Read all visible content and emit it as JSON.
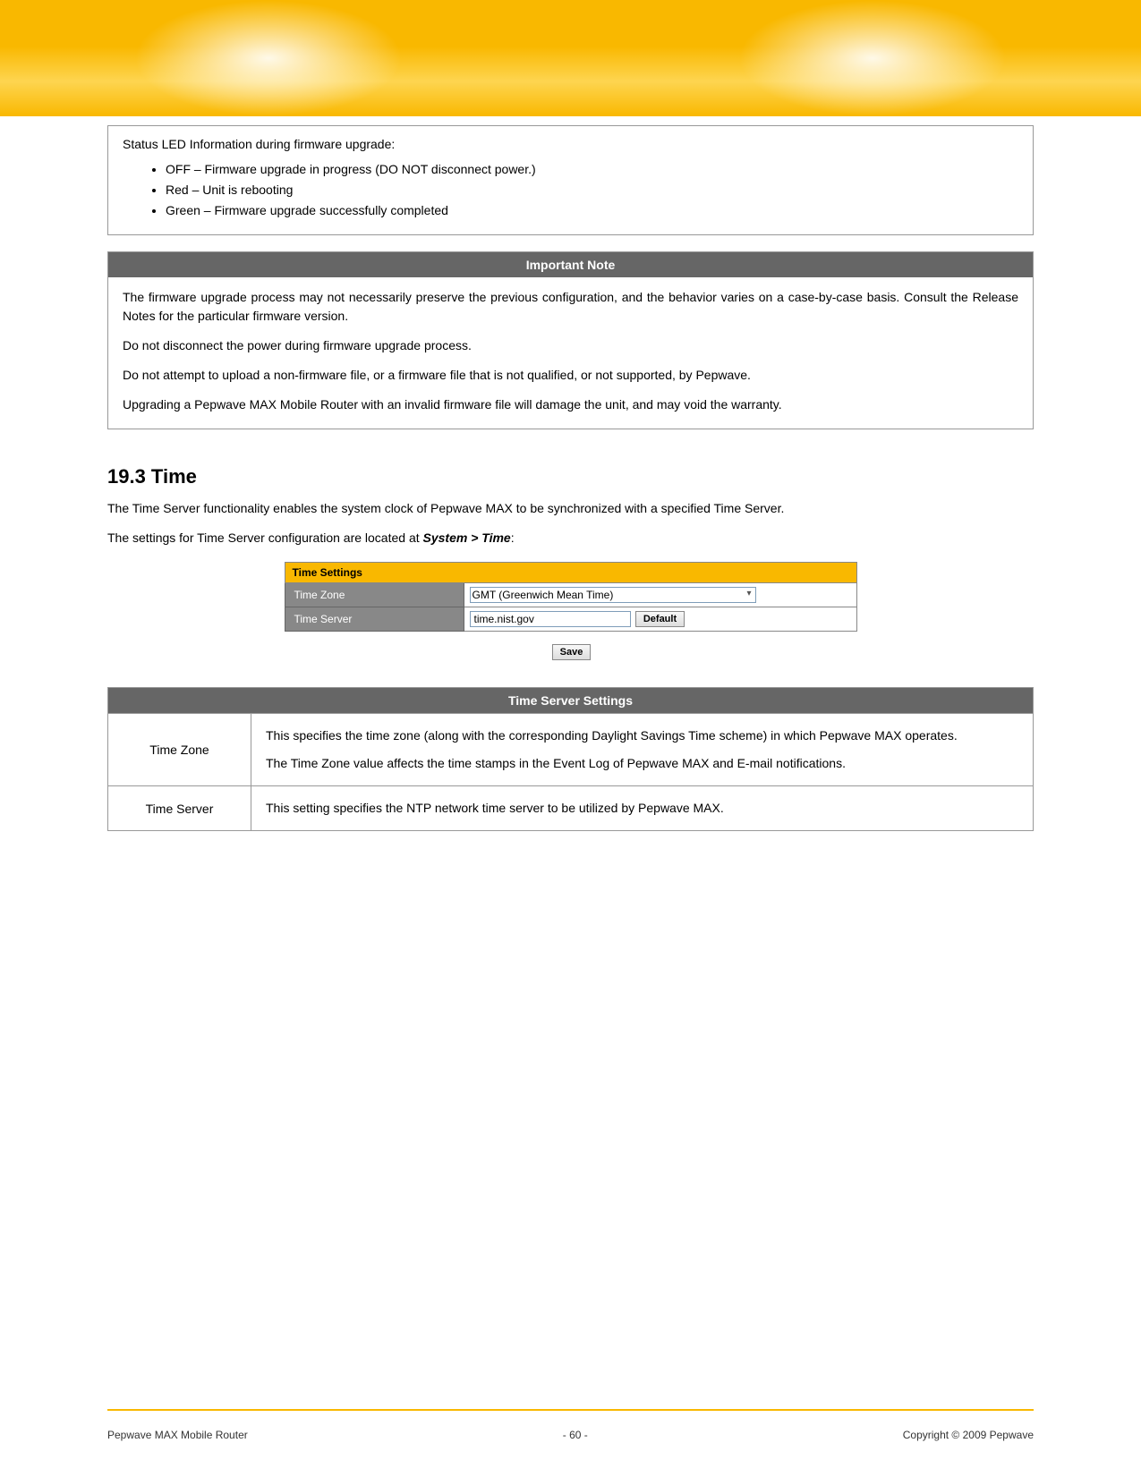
{
  "colors": {
    "banner": "#f9b800",
    "note_header_bg": "#666666",
    "note_header_fg": "#ffffff",
    "border": "#999999",
    "screenshot_header_bg": "#f9b800",
    "screenshot_label_bg": "#888888",
    "screenshot_label_fg": "#ffffff",
    "input_border": "#7f9db9"
  },
  "led": {
    "title": "Status LED Information during firmware upgrade:",
    "items": [
      "OFF – Firmware upgrade in progress (DO NOT disconnect power.)",
      "Red – Unit is rebooting",
      "Green – Firmware upgrade successfully completed"
    ]
  },
  "important_note": {
    "header": "Important Note",
    "paragraphs": [
      "The firmware upgrade process may not necessarily preserve the previous configuration, and the behavior varies on a case-by-case basis.  Consult the Release Notes for the particular firmware version.",
      "Do not disconnect the power during firmware upgrade process.",
      "Do not attempt to upload a non-firmware file, or a firmware file that is not qualified, or not supported, by Pepwave.",
      "Upgrading a Pepwave MAX Mobile Router with an invalid firmware file will damage the unit, and may void the warranty."
    ]
  },
  "section": {
    "heading": "19.3  Time",
    "intro1": "The Time Server functionality enables the system clock of Pepwave MAX to be synchronized with a specified Time Server.",
    "intro2_prefix": "The settings for Time Server configuration are located at  ",
    "intro2_path": "System > Time",
    "intro2_suffix": ":"
  },
  "time_settings_ui": {
    "panel_title": "Time Settings",
    "rows": {
      "time_zone_label": "Time Zone",
      "time_zone_value": "GMT (Greenwich Mean Time)",
      "time_server_label": "Time Server",
      "time_server_value": "time.nist.gov",
      "default_button": "Default"
    },
    "save_button": "Save"
  },
  "settings_table": {
    "header": "Time Server Settings",
    "rows": [
      {
        "label": "Time Zone",
        "paragraphs": [
          "This specifies the time zone (along with the corresponding Daylight Savings Time scheme) in which Pepwave MAX operates.",
          "The Time Zone value affects the time stamps in the Event Log of Pepwave MAX and E-mail notifications."
        ]
      },
      {
        "label": "Time Server",
        "paragraphs": [
          "This setting specifies the NTP network time server to be utilized by Pepwave MAX."
        ]
      }
    ]
  },
  "footer": {
    "left": "Pepwave MAX Mobile Router",
    "center": "- 60 -",
    "right": "Copyright © 2009 Pepwave"
  }
}
